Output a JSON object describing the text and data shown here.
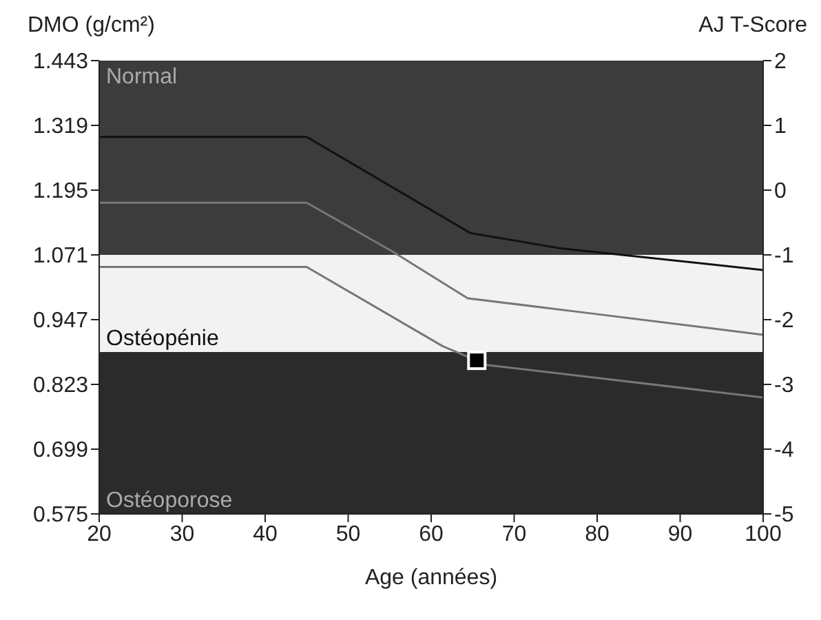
{
  "chart_data": {
    "type": "line",
    "ylabel": "DMO (g/cm²)",
    "y2label": "AJ T-Score",
    "xlabel": "Age (années)",
    "xlim": [
      20,
      100
    ],
    "xticks": [
      20,
      30,
      40,
      50,
      60,
      70,
      80,
      90,
      100
    ],
    "ylim": [
      0.575,
      1.443
    ],
    "yticks": [
      0.575,
      0.699,
      0.823,
      0.947,
      1.071,
      1.195,
      1.319,
      1.443
    ],
    "y2lim": [
      -5,
      2
    ],
    "y2ticks": [
      -5,
      -4,
      -3,
      -2,
      -1,
      0,
      1,
      2
    ],
    "bands": [
      {
        "axis": "y",
        "from": 1.071,
        "to": 1.443,
        "label": "Normal",
        "color": "#3c3c3c"
      },
      {
        "axis": "y",
        "from": 0.885,
        "to": 1.071,
        "label": "Ostéopénie",
        "color": "#f2f2f2"
      },
      {
        "axis": "y",
        "from": 0.575,
        "to": 0.885,
        "label": "Ostéoporose",
        "color": "#2b2b2b"
      }
    ],
    "series": [
      {
        "color": "#111111",
        "x": [
          20,
          45,
          64.7,
          75.4,
          100
        ],
        "values": [
          1.297,
          1.297,
          1.113,
          1.084,
          1.042
        ]
      },
      {
        "color": "#777777",
        "x": [
          20,
          45,
          55.4,
          64.4,
          77.7,
          100
        ],
        "values": [
          1.171,
          1.171,
          1.077,
          0.988,
          0.962,
          0.918
        ]
      },
      {
        "color": "#777777",
        "x": [
          20,
          45,
          61.4,
          66.8,
          100
        ],
        "values": [
          1.048,
          1.048,
          0.896,
          0.86,
          0.798
        ]
      },
      {
        "type": "scatter",
        "color": "#000000",
        "marker": "square",
        "x": [
          65.5
        ],
        "values": [
          0.869
        ]
      }
    ],
    "grid": false,
    "legend": false,
    "line_style": "solid"
  }
}
